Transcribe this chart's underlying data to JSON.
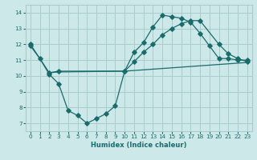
{
  "xlabel": "Humidex (Indice chaleur)",
  "background_color": "#cde8e8",
  "line_color": "#1a6b6b",
  "grid_color": "#aacccc",
  "xlim": [
    -0.5,
    23.5
  ],
  "ylim": [
    6.5,
    14.5
  ],
  "xticks": [
    0,
    1,
    2,
    3,
    4,
    5,
    6,
    7,
    8,
    9,
    10,
    11,
    12,
    13,
    14,
    15,
    16,
    17,
    18,
    19,
    20,
    21,
    22,
    23
  ],
  "yticks": [
    7,
    8,
    9,
    10,
    11,
    12,
    13,
    14
  ],
  "line1_x": [
    0,
    1,
    2,
    3,
    4,
    5,
    6,
    7,
    8,
    9,
    10,
    11,
    12,
    13,
    14,
    15,
    16,
    17,
    18,
    19,
    20,
    21,
    22,
    23
  ],
  "line1_y": [
    11.9,
    11.1,
    10.1,
    9.5,
    7.8,
    7.5,
    7.0,
    7.3,
    7.6,
    8.1,
    10.3,
    11.5,
    12.1,
    13.1,
    13.85,
    13.75,
    13.65,
    13.4,
    12.7,
    11.9,
    11.1,
    11.1,
    11.0,
    11.0
  ],
  "line2_x": [
    0,
    2,
    3,
    10,
    11,
    12,
    13,
    14,
    15,
    16,
    17,
    18,
    20,
    21,
    22,
    23
  ],
  "line2_y": [
    12.0,
    10.2,
    10.3,
    10.3,
    10.9,
    11.5,
    12.0,
    12.6,
    13.0,
    13.3,
    13.5,
    13.5,
    12.0,
    11.4,
    11.1,
    10.9
  ],
  "line3_x": [
    2,
    3,
    10,
    23
  ],
  "line3_y": [
    10.2,
    10.25,
    10.3,
    10.85
  ]
}
